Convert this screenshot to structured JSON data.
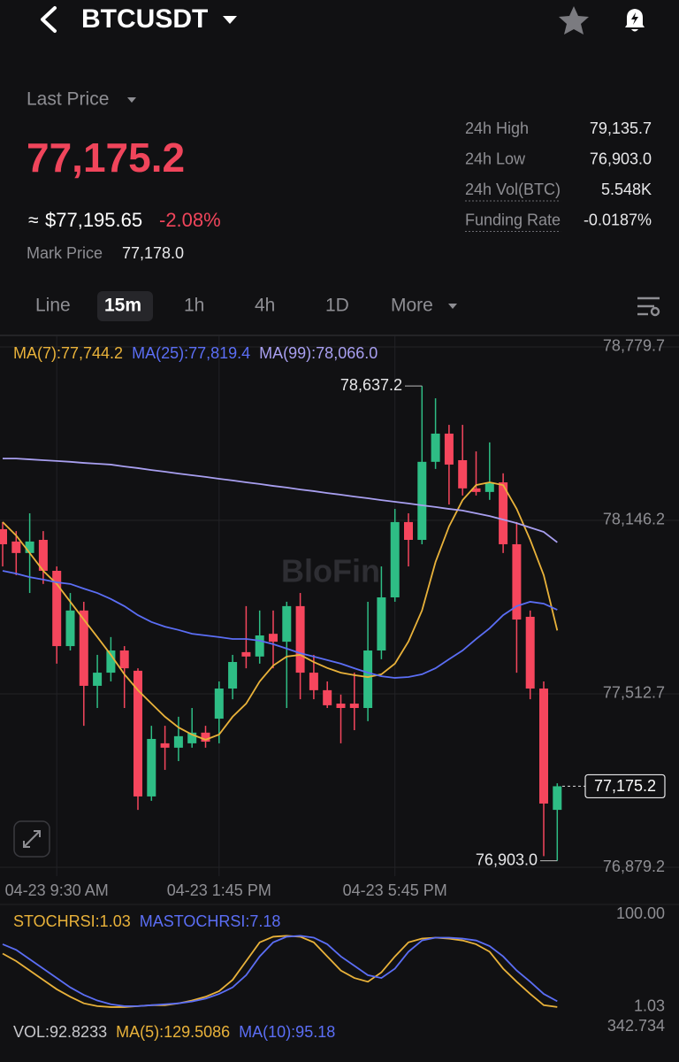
{
  "header": {
    "symbol": "BTCUSDT"
  },
  "ticker": {
    "last_price_label": "Last Price",
    "last_price": "77,175.2",
    "approx_sign": "≈",
    "usd_price": "$77,195.65",
    "change": "-2.08%",
    "mark_price_label": "Mark Price",
    "mark_price": "77,178.0",
    "stats": [
      {
        "label": "24h High",
        "value": "79,135.7"
      },
      {
        "label": "24h Low",
        "value": "76,903.0"
      },
      {
        "label": "24h Vol(BTC)",
        "value": "5.548K"
      },
      {
        "label": "Funding Rate",
        "value": "-0.0187%"
      }
    ]
  },
  "tabs": [
    "Line",
    "15m",
    "1h",
    "4h",
    "1D",
    "More"
  ],
  "watermark": "BloFin",
  "volume": {
    "legend": [
      {
        "text": "VOL:92.8233",
        "color": "#c8c8cc"
      },
      {
        "text": "MA(5):129.5086",
        "color": "#e9b23a"
      },
      {
        "text": "MA(10):95.18",
        "color": "#5b6ef5"
      }
    ],
    "axis_label": "342.734"
  },
  "chart_data": [
    {
      "type": "candlestick",
      "up_color": "#2ebd85",
      "down_color": "#f6465d",
      "categories": [
        null,
        null,
        null,
        null,
        "04-23 9:30 AM",
        null,
        null,
        null,
        null,
        null,
        null,
        null,
        null,
        null,
        null,
        null,
        "04-23 1:45 PM",
        null,
        null,
        null,
        null,
        null,
        null,
        null,
        null,
        null,
        null,
        null,
        null,
        "04-23 5:45 PM",
        null,
        null,
        null,
        null,
        null,
        null,
        null,
        null,
        null,
        null,
        null,
        null
      ],
      "candles": {
        "open": [
          78114,
          78069,
          78027,
          78075,
          77962,
          77687,
          77817,
          77542,
          77590,
          77671,
          77597,
          77138,
          77332,
          77316,
          77332,
          77371,
          77422,
          77532,
          77665,
          77649,
          77732,
          77703,
          77833,
          77590,
          77526,
          77477,
          77477,
          77461,
          77671,
          77865,
          78140,
          78075,
          78360,
          78463,
          78366,
          78263,
          78250,
          78285,
          78059,
          77794,
          77532,
          77089
        ],
        "high": [
          78140,
          78107,
          78172,
          78107,
          77978,
          77881,
          77849,
          77655,
          77720,
          77687,
          77606,
          77396,
          77396,
          77429,
          77461,
          77396,
          77558,
          77655,
          77833,
          77817,
          77817,
          77849,
          77881,
          77655,
          77558,
          77510,
          77590,
          77849,
          77978,
          78188,
          78172,
          78637.2,
          78592,
          78495,
          78495,
          78398,
          78431,
          78318,
          78140,
          77817,
          77558,
          77186
        ],
        "low": [
          77978,
          77946,
          77881,
          77914,
          77623,
          77671,
          77396,
          77461,
          77558,
          77461,
          77089,
          77122,
          77235,
          77267,
          77316,
          77316,
          77332,
          77493,
          77606,
          77623,
          77606,
          77461,
          77493,
          77493,
          77461,
          77332,
          77380,
          77413,
          77639,
          77849,
          77978,
          78059,
          78334,
          78204,
          78237,
          78237,
          78221,
          78027,
          77590,
          77493,
          76920,
          76903.0
        ],
        "close": [
          78059,
          78027,
          78069,
          77962,
          77687,
          77817,
          77542,
          77590,
          77671,
          77606,
          77138,
          77348,
          77316,
          77358,
          77371,
          77338,
          77532,
          77629,
          77649,
          77726,
          77703,
          77833,
          77590,
          77526,
          77471,
          77461,
          77461,
          77671,
          77865,
          78140,
          78075,
          78360,
          78463,
          78350,
          78263,
          78250,
          78285,
          78059,
          77784,
          77532,
          77112,
          77175.2
        ]
      },
      "series": [
        {
          "name": "MA(7):77,744.2",
          "color": "#e9b23a",
          "values": [
            78140,
            78091,
            78027,
            77962,
            77914,
            77849,
            77784,
            77720,
            77655,
            77584,
            77526,
            77477,
            77429,
            77390,
            77364,
            77345,
            77364,
            77429,
            77477,
            77558,
            77616,
            77649,
            77655,
            77629,
            77607,
            77590,
            77581,
            77574,
            77584,
            77623,
            77704,
            77817,
            77994,
            78124,
            78220,
            78275,
            78285,
            78275,
            78188,
            78075,
            77946,
            77744.2
          ]
        },
        {
          "name": "MA(25):77,819.4",
          "color": "#5b6ef5",
          "values": [
            77962,
            77952,
            77939,
            77930,
            77920,
            77914,
            77897,
            77881,
            77859,
            77833,
            77800,
            77775,
            77758,
            77746,
            77732,
            77726,
            77720,
            77713,
            77713,
            77707,
            77694,
            77678,
            77661,
            77649,
            77636,
            77623,
            77606,
            77590,
            77577,
            77571,
            77574,
            77584,
            77606,
            77639,
            77671,
            77713,
            77752,
            77800,
            77833,
            77849,
            77842,
            77819.4
          ]
        },
        {
          "name": "MA(99):78,066.0",
          "color": "#a89ff0",
          "values": [
            78372,
            78372,
            78369,
            78366,
            78363,
            78360,
            78356,
            78353,
            78350,
            78343,
            78337,
            78330,
            78324,
            78317,
            78311,
            78305,
            78298,
            78292,
            78285,
            78279,
            78272,
            78266,
            78259,
            78253,
            78246,
            78240,
            78233,
            78227,
            78220,
            78214,
            78208,
            78201,
            78195,
            78188,
            78182,
            78172,
            78162,
            78149,
            78136,
            78120,
            78104,
            78066.0
          ]
        }
      ],
      "ylim": [
        76846.9,
        78818.4
      ],
      "yticks": [
        {
          "value": 78779.7,
          "label": "78,779.7"
        },
        {
          "value": 78146.2,
          "label": "78,146.2"
        },
        {
          "value": 77512.7,
          "label": "77,512.7"
        },
        {
          "value": 76879.2,
          "label": "76,879.2"
        }
      ],
      "grid": true,
      "high_label": {
        "value": 78637.2,
        "label": "78,637.2"
      },
      "low_label": {
        "value": 76903.0,
        "label": "76,903.0"
      },
      "last_price_tag": {
        "value": 77175.2,
        "label": "77,175.2"
      }
    },
    {
      "type": "line",
      "series": [
        {
          "name": "STOCHRSI:1.03",
          "color": "#e9b23a",
          "values": [
            58,
            50,
            40,
            30,
            20,
            12,
            5,
            2,
            1,
            1,
            2,
            3,
            3,
            5,
            8,
            12,
            18,
            30,
            50,
            70,
            76,
            77,
            76,
            70,
            55,
            40,
            32,
            28,
            38,
            55,
            70,
            74,
            75,
            74,
            72,
            68,
            60,
            42,
            28,
            15,
            3,
            1.03
          ]
        },
        {
          "name": "MASTOCHRSI:7.18",
          "color": "#5b6ef5",
          "values": [
            68,
            62,
            52,
            42,
            32,
            22,
            14,
            8,
            4,
            2,
            2,
            3,
            4,
            5,
            7,
            10,
            15,
            22,
            35,
            55,
            70,
            76,
            77,
            75,
            68,
            55,
            45,
            35,
            32,
            42,
            60,
            72,
            75,
            75,
            74,
            72,
            66,
            55,
            40,
            28,
            15,
            7.18
          ]
        }
      ],
      "ylim": [
        0,
        100
      ],
      "yticks": [
        {
          "value": 100,
          "label": "100.00"
        },
        {
          "value": 1.03,
          "label": "1.03"
        }
      ],
      "grid": false
    }
  ]
}
